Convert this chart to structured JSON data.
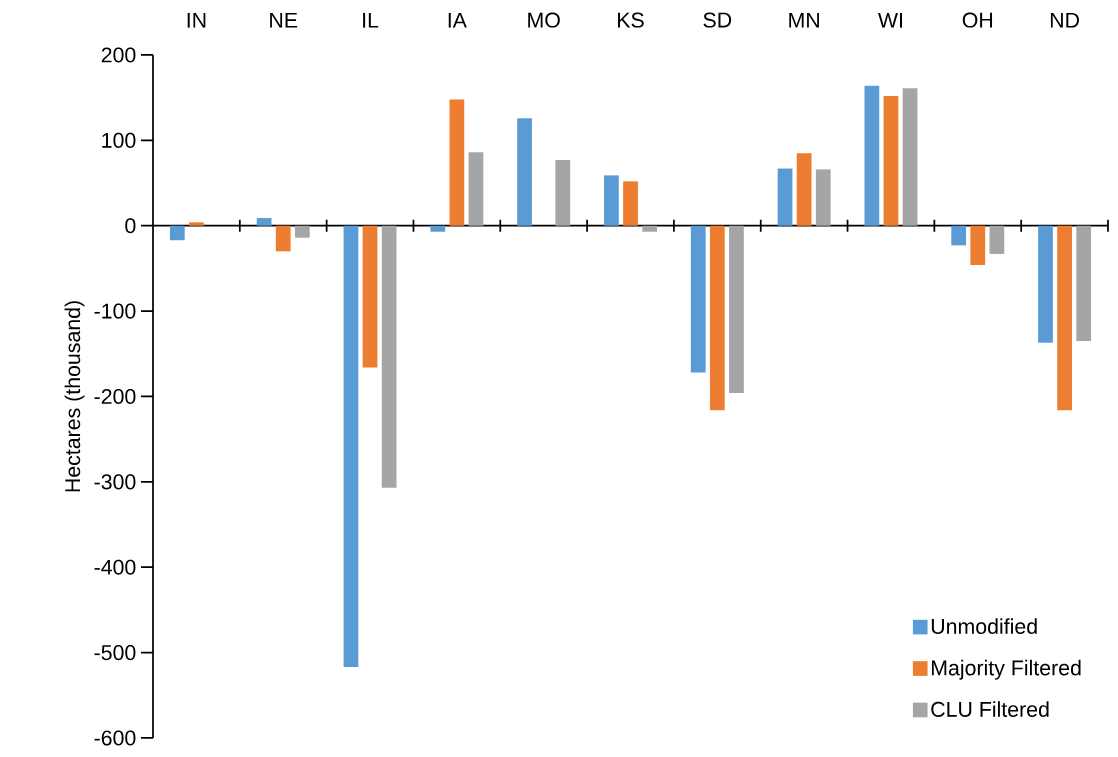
{
  "chart_data": {
    "type": "bar",
    "ylabel": "Hectares (thousand)",
    "categories": [
      "IN",
      "NE",
      "IL",
      "IA",
      "MO",
      "KS",
      "SD",
      "MN",
      "WI",
      "OH",
      "ND"
    ],
    "series": [
      {
        "name": "Unmodified",
        "color": "#5b9bd5",
        "values": [
          -17,
          9,
          -517,
          -7,
          126,
          59,
          -172,
          67,
          164,
          -23,
          -137
        ]
      },
      {
        "name": "Majority Filtered",
        "color": "#ed7d31",
        "values": [
          4,
          -30,
          -166,
          148,
          null,
          52,
          -216,
          85,
          152,
          -46,
          -216
        ]
      },
      {
        "name": "CLU Filtered",
        "color": "#a5a5a5",
        "values": [
          null,
          -14,
          -307,
          86,
          77,
          -7,
          -196,
          66,
          161,
          -33,
          -135
        ]
      }
    ],
    "ylim": [
      -600,
      200
    ],
    "yticks": [
      -600,
      -500,
      -400,
      -300,
      -200,
      -100,
      0,
      100,
      200
    ],
    "legend": "bottom right"
  }
}
